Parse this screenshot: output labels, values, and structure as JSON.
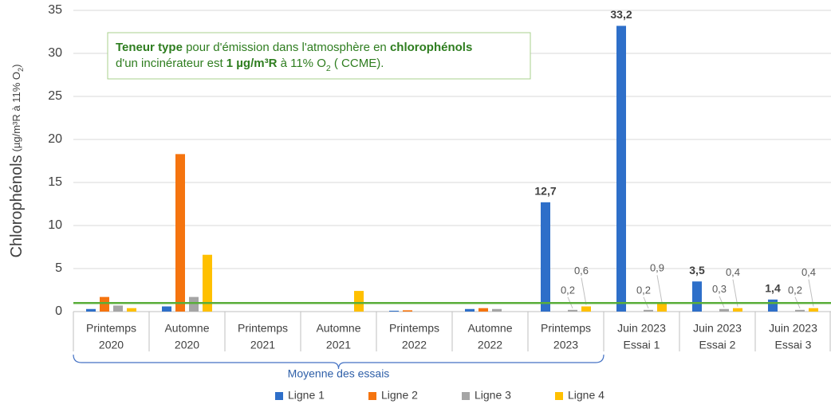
{
  "chart_data": {
    "type": "bar",
    "ylabel": "Chlorophénols",
    "ylabel_unit": [
      {
        "text": "(µg/m³R à 11% O"
      },
      {
        "text": "2",
        "sub": true
      },
      {
        "text": ")"
      }
    ],
    "categories": [
      [
        "Printemps",
        "2020"
      ],
      [
        "Automne",
        "2020"
      ],
      [
        "Printemps",
        "2021"
      ],
      [
        "Automne",
        "2021"
      ],
      [
        "Printemps",
        "2022"
      ],
      [
        "Automne",
        "2022"
      ],
      [
        "Printemps",
        "2023"
      ],
      [
        "Juin 2023",
        "Essai 1"
      ],
      [
        "Juin 2023",
        "Essai 2"
      ],
      [
        "Juin 2023",
        "Essai 3"
      ]
    ],
    "series": [
      {
        "name": "Ligne 1",
        "color": "#2e6fc9",
        "values": [
          0.3,
          0.6,
          null,
          null,
          0.1,
          0.3,
          12.7,
          33.2,
          3.5,
          1.4
        ],
        "value_labels": [
          null,
          null,
          null,
          null,
          null,
          null,
          "12,7",
          "33,2",
          "3,5",
          "1,4"
        ]
      },
      {
        "name": "Ligne 2",
        "color": "#f5740f",
        "values": [
          1.7,
          18.3,
          null,
          null,
          0.15,
          0.4,
          null,
          null,
          null,
          null
        ]
      },
      {
        "name": "Ligne 3",
        "color": "#a5a5a5",
        "values": [
          0.7,
          1.7,
          null,
          null,
          null,
          0.3,
          0.2,
          0.2,
          0.3,
          0.2
        ],
        "value_labels": [
          null,
          null,
          null,
          null,
          null,
          null,
          "0,2",
          "0,2",
          "0,3",
          "0,2"
        ]
      },
      {
        "name": "Ligne 4",
        "color": "#ffc000",
        "values": [
          0.4,
          6.6,
          null,
          2.4,
          null,
          null,
          0.6,
          0.9,
          0.4,
          0.4
        ],
        "value_labels": [
          null,
          null,
          null,
          null,
          null,
          null,
          "0,6",
          "0,9",
          "0,4",
          "0,4"
        ]
      }
    ],
    "ylim": [
      0,
      35
    ],
    "yticks": [
      0,
      5,
      10,
      15,
      20,
      25,
      30,
      35
    ],
    "grid": true,
    "reference_line": {
      "value": 1,
      "color": "#5aae3a"
    },
    "annotation": [
      [
        {
          "text": "Teneur type",
          "bold": true
        },
        {
          "text": " pour d'émission dans l'atmosphère en "
        },
        {
          "text": "chlorophénols",
          "bold": true
        }
      ],
      [
        {
          "text": "d'un incinérateur est "
        },
        {
          "text": "1 µg/m³R",
          "bold": true
        },
        {
          "text": " à 11% O"
        },
        {
          "text": "2",
          "sub": true
        },
        {
          "text": " ( CCME)."
        }
      ]
    ],
    "bracket": {
      "label": "Moyenne des essais",
      "from": 0,
      "to": 6
    },
    "legend": "bottom"
  }
}
